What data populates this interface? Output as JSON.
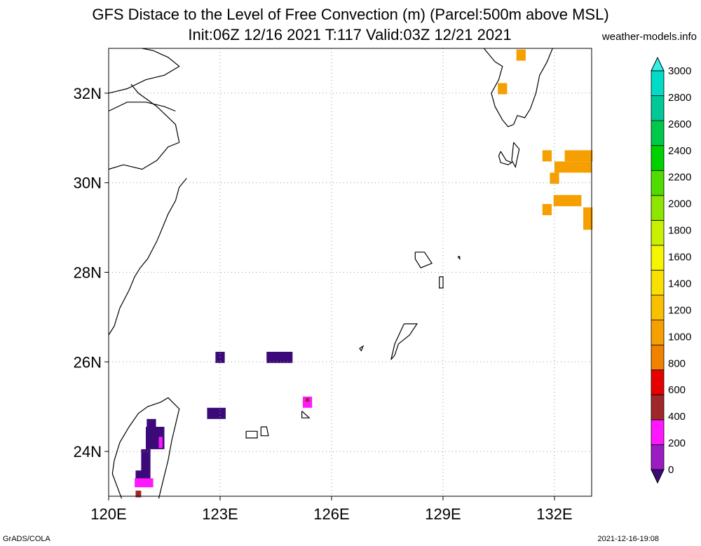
{
  "title": {
    "line1": "GFS Distace to the Level of Free Convection (m) (Parcel:500m above MSL)",
    "line2": "Init:06Z 12/16 2021 T:117 Valid:03Z 12/21 2021",
    "site": "weather-models.info"
  },
  "footer": {
    "left": "GrADS/COLA",
    "right": "2021-12-16-19:08"
  },
  "axes": {
    "lon_range": [
      120,
      133
    ],
    "lat_range": [
      23,
      33
    ],
    "lon_ticks": [
      120,
      123,
      126,
      129,
      132
    ],
    "lon_labels": [
      "120E",
      "123E",
      "126E",
      "129E",
      "132E"
    ],
    "lat_ticks": [
      24,
      26,
      28,
      30,
      32
    ],
    "lat_labels": [
      "24N",
      "26N",
      "28N",
      "30N",
      "32N"
    ],
    "grid": "dotted"
  },
  "colorbar": {
    "labels": [
      "0",
      "200",
      "400",
      "600",
      "800",
      "1000",
      "1200",
      "1400",
      "1600",
      "1800",
      "2000",
      "2200",
      "2400",
      "2600",
      "2800",
      "3000"
    ],
    "colors": [
      "#3c0a78",
      "#9c1cc4",
      "#ff18ff",
      "#a0282a",
      "#e60000",
      "#f08200",
      "#f5a000",
      "#fac000",
      "#fae000",
      "#f5f500",
      "#c8f000",
      "#8ce600",
      "#50dc00",
      "#00d200",
      "#00c84a",
      "#00c896",
      "#00dcc8",
      "#32f0e6"
    ]
  },
  "field_cells": [
    {
      "lon": 123.0,
      "lat": 26.1,
      "dlon": 0.25,
      "dlat": 0.25,
      "color": "#3c0a78"
    },
    {
      "lon": 124.6,
      "lat": 26.1,
      "dlon": 0.7,
      "dlat": 0.25,
      "color": "#3c0a78"
    },
    {
      "lon": 122.9,
      "lat": 24.85,
      "dlon": 0.5,
      "dlat": 0.25,
      "color": "#3c0a78"
    },
    {
      "lon": 125.35,
      "lat": 25.1,
      "dlon": 0.25,
      "dlat": 0.25,
      "color": "#ff18ff"
    },
    {
      "lon": 125.35,
      "lat": 25.15,
      "dlon": 0.1,
      "dlat": 0.08,
      "color": "#a0282a"
    },
    {
      "lon": 121.15,
      "lat": 24.6,
      "dlon": 0.25,
      "dlat": 0.25,
      "color": "#3c0a78"
    },
    {
      "lon": 121.25,
      "lat": 24.3,
      "dlon": 0.5,
      "dlat": 0.5,
      "color": "#3c0a78"
    },
    {
      "lon": 121.0,
      "lat": 23.8,
      "dlon": 0.25,
      "dlat": 0.5,
      "color": "#3c0a78"
    },
    {
      "lon": 120.85,
      "lat": 23.45,
      "dlon": 0.25,
      "dlat": 0.25,
      "color": "#3c0a78"
    },
    {
      "lon": 121.0,
      "lat": 23.45,
      "dlon": 0.25,
      "dlat": 0.25,
      "color": "#3c0a78"
    },
    {
      "lon": 120.95,
      "lat": 23.3,
      "dlon": 0.5,
      "dlat": 0.2,
      "color": "#ff18ff"
    },
    {
      "lon": 120.8,
      "lat": 23.05,
      "dlon": 0.15,
      "dlat": 0.15,
      "color": "#a0282a"
    },
    {
      "lon": 121.4,
      "lat": 24.2,
      "dlon": 0.1,
      "dlat": 0.25,
      "color": "#ff18ff"
    },
    {
      "lon": 131.1,
      "lat": 32.85,
      "dlon": 0.25,
      "dlat": 0.25,
      "color": "#f5a000"
    },
    {
      "lon": 130.6,
      "lat": 32.1,
      "dlon": 0.25,
      "dlat": 0.25,
      "color": "#f5a000"
    },
    {
      "lon": 131.8,
      "lat": 30.6,
      "dlon": 0.25,
      "dlat": 0.25,
      "color": "#f5a000"
    },
    {
      "lon": 132.65,
      "lat": 30.6,
      "dlon": 0.75,
      "dlat": 0.25,
      "color": "#f5a000"
    },
    {
      "lon": 132.5,
      "lat": 30.35,
      "dlon": 1.0,
      "dlat": 0.25,
      "color": "#f5a000"
    },
    {
      "lon": 132.0,
      "lat": 30.1,
      "dlon": 0.25,
      "dlat": 0.25,
      "color": "#f5a000"
    },
    {
      "lon": 132.35,
      "lat": 29.6,
      "dlon": 0.75,
      "dlat": 0.25,
      "color": "#f5a000"
    },
    {
      "lon": 131.8,
      "lat": 29.4,
      "dlon": 0.25,
      "dlat": 0.25,
      "color": "#f5a000"
    },
    {
      "lon": 132.9,
      "lat": 29.2,
      "dlon": 0.25,
      "dlat": 0.5,
      "color": "#f5a000"
    }
  ],
  "coastlines": [
    [
      [
        120.0,
        26.6
      ],
      [
        120.15,
        26.8
      ],
      [
        120.3,
        27.2
      ],
      [
        120.55,
        27.6
      ],
      [
        120.7,
        27.9
      ],
      [
        120.85,
        28.1
      ],
      [
        121.05,
        28.3
      ],
      [
        121.3,
        28.7
      ],
      [
        121.45,
        29.0
      ],
      [
        121.6,
        29.3
      ],
      [
        121.8,
        29.6
      ],
      [
        121.9,
        29.9
      ],
      [
        122.1,
        30.1
      ]
    ],
    [
      [
        120.0,
        30.3
      ],
      [
        120.4,
        30.4
      ],
      [
        120.9,
        30.3
      ],
      [
        121.3,
        30.5
      ],
      [
        121.6,
        30.8
      ],
      [
        121.9,
        30.9
      ]
    ],
    [
      [
        121.9,
        30.9
      ],
      [
        121.8,
        31.3
      ],
      [
        121.3,
        31.7
      ],
      [
        120.8,
        32.0
      ],
      [
        120.6,
        32.2
      ]
    ],
    [
      [
        120.0,
        31.6
      ],
      [
        120.5,
        31.8
      ],
      [
        121.0,
        31.8
      ],
      [
        121.5,
        31.7
      ],
      [
        121.8,
        31.6
      ]
    ],
    [
      [
        120.0,
        32.0
      ],
      [
        120.5,
        32.1
      ],
      [
        121.0,
        32.3
      ],
      [
        121.5,
        32.4
      ],
      [
        121.9,
        32.6
      ],
      [
        121.6,
        32.8
      ],
      [
        121.2,
        32.95
      ],
      [
        120.9,
        33.0
      ]
    ],
    [
      [
        120.35,
        22.95
      ],
      [
        120.1,
        23.5
      ],
      [
        120.15,
        23.8
      ],
      [
        120.3,
        24.2
      ],
      [
        120.55,
        24.55
      ],
      [
        120.8,
        24.85
      ],
      [
        121.05,
        25.0
      ],
      [
        121.4,
        25.1
      ],
      [
        121.6,
        25.2
      ],
      [
        121.9,
        24.95
      ],
      [
        121.8,
        24.6
      ],
      [
        121.7,
        24.25
      ],
      [
        121.6,
        23.8
      ],
      [
        121.45,
        23.3
      ],
      [
        121.35,
        22.95
      ]
    ],
    [
      [
        130.1,
        33.0
      ],
      [
        130.4,
        32.7
      ],
      [
        130.6,
        32.6
      ],
      [
        130.5,
        32.3
      ],
      [
        130.3,
        32.0
      ],
      [
        130.4,
        31.7
      ],
      [
        130.6,
        31.4
      ],
      [
        130.75,
        31.25
      ],
      [
        130.9,
        31.3
      ],
      [
        131.0,
        31.5
      ],
      [
        131.2,
        31.45
      ],
      [
        131.35,
        31.65
      ],
      [
        131.5,
        32.0
      ],
      [
        131.6,
        32.4
      ],
      [
        131.8,
        32.7
      ],
      [
        131.95,
        33.0
      ]
    ],
    [
      [
        130.55,
        30.7
      ],
      [
        130.7,
        30.5
      ],
      [
        130.85,
        30.45
      ],
      [
        130.75,
        30.4
      ],
      [
        130.55,
        30.45
      ],
      [
        130.5,
        30.6
      ],
      [
        130.55,
        30.7
      ]
    ],
    [
      [
        130.9,
        30.9
      ],
      [
        131.05,
        30.75
      ],
      [
        130.95,
        30.35
      ],
      [
        130.85,
        30.5
      ],
      [
        130.9,
        30.9
      ]
    ],
    [
      [
        128.25,
        28.45
      ],
      [
        128.5,
        28.45
      ],
      [
        128.7,
        28.2
      ],
      [
        128.4,
        28.1
      ],
      [
        128.25,
        28.3
      ],
      [
        128.25,
        28.45
      ]
    ],
    [
      [
        127.95,
        26.85
      ],
      [
        128.3,
        26.85
      ],
      [
        128.1,
        26.6
      ],
      [
        127.8,
        26.4
      ],
      [
        127.7,
        26.15
      ],
      [
        127.6,
        26.05
      ],
      [
        127.7,
        26.4
      ],
      [
        127.95,
        26.85
      ]
    ],
    [
      [
        123.7,
        24.45
      ],
      [
        124.0,
        24.45
      ],
      [
        124.0,
        24.3
      ],
      [
        123.7,
        24.3
      ],
      [
        123.7,
        24.45
      ]
    ],
    [
      [
        124.1,
        24.55
      ],
      [
        124.25,
        24.55
      ],
      [
        124.3,
        24.35
      ],
      [
        124.1,
        24.35
      ],
      [
        124.1,
        24.55
      ]
    ],
    [
      [
        125.2,
        24.9
      ],
      [
        125.4,
        24.75
      ],
      [
        125.2,
        24.75
      ],
      [
        125.2,
        24.9
      ]
    ],
    [
      [
        128.9,
        27.9
      ],
      [
        129.0,
        27.9
      ],
      [
        129.0,
        27.65
      ],
      [
        128.9,
        27.65
      ],
      [
        128.9,
        27.9
      ]
    ],
    [
      [
        126.75,
        26.3
      ],
      [
        126.85,
        26.35
      ],
      [
        126.8,
        26.25
      ],
      [
        126.75,
        26.3
      ]
    ],
    [
      [
        129.4,
        28.35
      ],
      [
        129.45,
        28.35
      ],
      [
        129.45,
        28.3
      ],
      [
        129.4,
        28.35
      ]
    ]
  ]
}
